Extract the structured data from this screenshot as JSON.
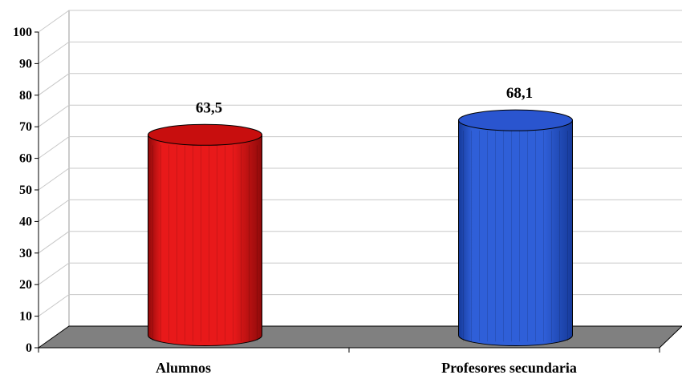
{
  "chart_data": {
    "type": "bar",
    "categories": [
      "Alumnos",
      "Profesores secundaria"
    ],
    "values": [
      63.5,
      68.1
    ],
    "data_labels": [
      "63,5",
      "68,1"
    ],
    "ylim": [
      0,
      100
    ],
    "yticks": [
      "0",
      "10",
      "20",
      "30",
      "40",
      "50",
      "60",
      "70",
      "80",
      "90",
      "100"
    ],
    "grid": true,
    "legend": "none",
    "colors": {
      "bars": [
        "#e8191a",
        "#2f5fd8"
      ],
      "bar_dark": [
        "#8f0a0a",
        "#163a9a"
      ],
      "bar_top": [
        "#c80e0e",
        "#2a55cf"
      ],
      "floor": "#808080",
      "gridline": "#c8c8c8"
    }
  }
}
